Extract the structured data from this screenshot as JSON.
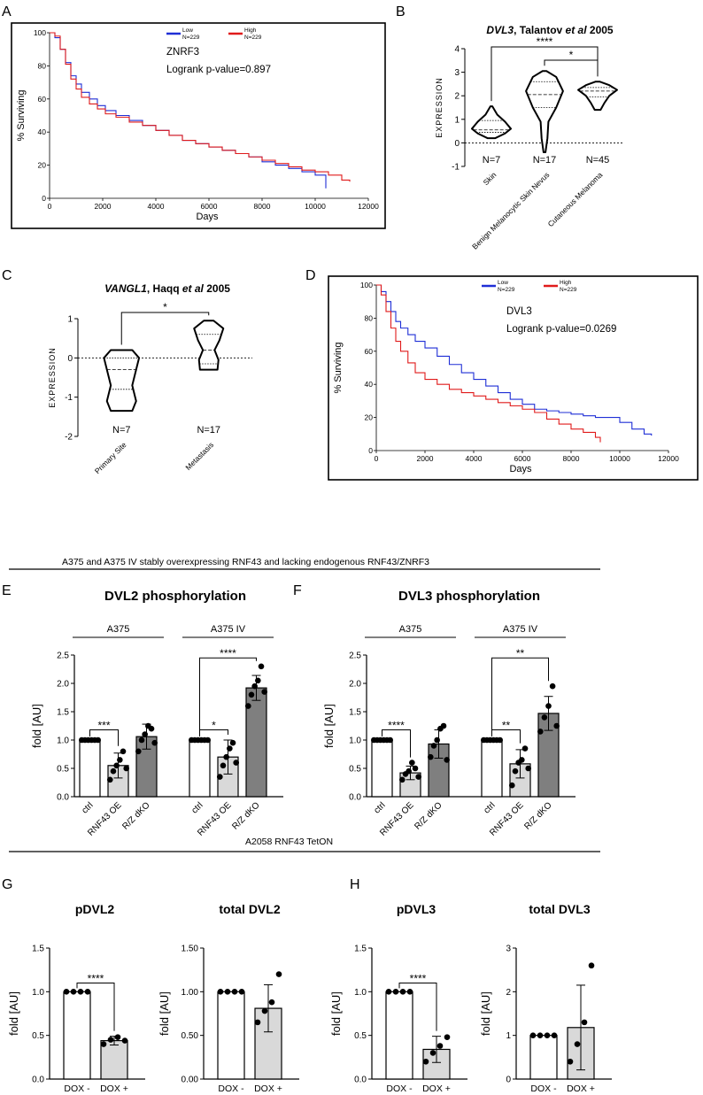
{
  "figure": {
    "panel_letters": [
      "A",
      "B",
      "C",
      "D",
      "E",
      "F",
      "G",
      "H"
    ],
    "section_e_title": "A375 and A375 IV stably overexpressing RNF43 and lacking endogenous RNF43/ZNRF3",
    "section_g_title": "A2058 RNF43    TetON"
  },
  "colors": {
    "low": "#1f2fd6",
    "high": "#e01b1b",
    "white_bar": "#ffffff",
    "light_bar": "#d9d9d9",
    "dark_bar": "#7f7f7f"
  },
  "chart_data": [
    {
      "id": "A",
      "type": "line",
      "gene": "ZNRF3",
      "pvalue_text": "Logrank  p-value=0.897",
      "xlabel": "Days",
      "ylabel": "% Surviving",
      "xlim": [
        0,
        12000
      ],
      "ylim": [
        0,
        100
      ],
      "xticks": [
        0,
        2000,
        4000,
        6000,
        8000,
        10000,
        12000
      ],
      "yticks": [
        0,
        20,
        40,
        60,
        80,
        100
      ],
      "legend": [
        {
          "name": "Low",
          "n": "N=229",
          "color": "#1f2fd6"
        },
        {
          "name": "High",
          "n": "N=229",
          "color": "#e01b1b"
        }
      ],
      "series": [
        {
          "name": "Low",
          "color": "#1f2fd6",
          "x": [
            0,
            200,
            400,
            600,
            800,
            1000,
            1200,
            1500,
            1800,
            2100,
            2500,
            3000,
            3500,
            4000,
            4500,
            5000,
            5500,
            6000,
            6500,
            7000,
            7500,
            8000,
            8500,
            9000,
            9500,
            10000,
            10400
          ],
          "y": [
            100,
            97,
            90,
            82,
            74,
            69,
            64,
            60,
            56,
            53,
            50,
            47,
            44,
            41,
            38,
            35,
            33,
            31,
            29,
            27,
            25,
            22,
            20,
            18,
            16,
            14,
            6
          ]
        },
        {
          "name": "High",
          "color": "#e01b1b",
          "x": [
            0,
            200,
            400,
            600,
            800,
            1000,
            1200,
            1500,
            1800,
            2100,
            2500,
            3000,
            3500,
            4000,
            4500,
            5000,
            5500,
            6000,
            6500,
            7000,
            7500,
            8000,
            8500,
            9000,
            9500,
            10000,
            10500,
            11000,
            11300
          ],
          "y": [
            100,
            98,
            90,
            81,
            72,
            66,
            61,
            57,
            54,
            51,
            49,
            46,
            44,
            41,
            38,
            35,
            33,
            31,
            29,
            27,
            25,
            23,
            21,
            19,
            17,
            16,
            14,
            11,
            10
          ]
        }
      ]
    },
    {
      "id": "B",
      "type": "violin",
      "title_italic": "DVL3",
      "title_rest": ", Talantov ",
      "title_etal": "et al",
      "title_year": " 2005",
      "ylabel": "EXPRESSION",
      "ylim": [
        -1,
        4
      ],
      "yticks": [
        -1,
        0,
        1,
        2,
        3,
        4
      ],
      "categories": [
        "Skin",
        "Benign Melanocytic Skin Nevus",
        "Cutaneous Melanoma"
      ],
      "counts": [
        "N=7",
        "N=17",
        "N=45"
      ],
      "groups": [
        {
          "min": 0.2,
          "max": 1.55,
          "q1": 0.45,
          "median": 0.55,
          "q3": 0.95,
          "widths": [
            [
              0.2,
              0.2
            ],
            [
              0.4,
              0.7
            ],
            [
              0.6,
              1.0
            ],
            [
              0.9,
              0.7
            ],
            [
              1.2,
              0.3
            ],
            [
              1.55,
              0.05
            ]
          ]
        },
        {
          "min": -0.4,
          "max": 3.05,
          "q1": 1.5,
          "median": 2.05,
          "q3": 2.6,
          "widths": [
            [
              -0.4,
              0.05
            ],
            [
              0.2,
              0.15
            ],
            [
              0.9,
              0.2
            ],
            [
              1.5,
              0.6
            ],
            [
              2.2,
              0.95
            ],
            [
              2.8,
              0.6
            ],
            [
              3.05,
              0.1
            ]
          ]
        },
        {
          "min": 1.4,
          "max": 2.6,
          "q1": 1.95,
          "median": 2.2,
          "q3": 2.35,
          "widths": [
            [
              1.4,
              0.15
            ],
            [
              1.7,
              0.35
            ],
            [
              2.0,
              0.6
            ],
            [
              2.25,
              1.0
            ],
            [
              2.45,
              0.6
            ],
            [
              2.6,
              0.1
            ]
          ]
        }
      ],
      "brackets": [
        {
          "from": 0,
          "to": 2,
          "label": "****"
        },
        {
          "from": 1,
          "to": 2,
          "label": "*"
        }
      ]
    },
    {
      "id": "C",
      "type": "violin",
      "title_italic": "VANGL1",
      "title_rest": ", Haqq ",
      "title_etal": "et al",
      "title_year": " 2005",
      "ylabel": "EXPRESSION",
      "ylim": [
        -2,
        1
      ],
      "yticks": [
        -2,
        -1,
        0,
        1
      ],
      "categories": [
        "Primary Site",
        "Metastasis"
      ],
      "counts": [
        "N=7",
        "N=17"
      ],
      "groups": [
        {
          "min": -1.35,
          "max": 0.2,
          "q1": -0.8,
          "median": -0.3,
          "q3": 0.0,
          "widths": [
            [
              -1.35,
              0.55
            ],
            [
              -1.1,
              0.75
            ],
            [
              -0.7,
              0.55
            ],
            [
              -0.3,
              0.75
            ],
            [
              0.0,
              0.9
            ],
            [
              0.2,
              0.55
            ]
          ]
        },
        {
          "min": -0.3,
          "max": 0.95,
          "q1": -0.15,
          "median": 0.2,
          "q3": 0.6,
          "widths": [
            [
              -0.3,
              0.45
            ],
            [
              -0.05,
              0.5
            ],
            [
              0.2,
              0.3
            ],
            [
              0.45,
              0.55
            ],
            [
              0.75,
              0.75
            ],
            [
              0.95,
              0.25
            ]
          ]
        }
      ],
      "brackets": [
        {
          "from": 0,
          "to": 1,
          "label": "*"
        }
      ]
    },
    {
      "id": "D",
      "type": "line",
      "gene": "DVL3",
      "pvalue_text": "Logrank  p-value=0.0269",
      "xlabel": "Days",
      "ylabel": "% Surviving",
      "xlim": [
        0,
        12000
      ],
      "ylim": [
        0,
        100
      ],
      "xticks": [
        0,
        2000,
        4000,
        6000,
        8000,
        10000,
        12000
      ],
      "yticks": [
        0,
        20,
        40,
        60,
        80,
        100
      ],
      "legend": [
        {
          "name": "Low",
          "n": "N=229",
          "color": "#1f2fd6"
        },
        {
          "name": "High",
          "n": "N=229",
          "color": "#e01b1b"
        }
      ],
      "series": [
        {
          "name": "Low",
          "color": "#1f2fd6",
          "x": [
            0,
            200,
            400,
            600,
            800,
            1000,
            1300,
            1600,
            2000,
            2500,
            3000,
            3500,
            4000,
            4500,
            5000,
            5500,
            6000,
            6500,
            7000,
            7500,
            8000,
            8500,
            9000,
            9500,
            10000,
            10500,
            11000,
            11300
          ],
          "y": [
            100,
            96,
            90,
            84,
            78,
            74,
            70,
            66,
            62,
            57,
            52,
            47,
            43,
            39,
            35,
            31,
            28,
            25,
            24,
            23,
            22,
            21,
            20,
            20,
            17,
            13,
            10,
            9
          ]
        },
        {
          "name": "High",
          "color": "#e01b1b",
          "x": [
            0,
            200,
            400,
            600,
            800,
            1000,
            1300,
            1600,
            2000,
            2500,
            3000,
            3500,
            4000,
            4500,
            5000,
            5500,
            6000,
            6500,
            7000,
            7500,
            8000,
            8500,
            9000,
            9200
          ],
          "y": [
            100,
            94,
            84,
            74,
            66,
            60,
            53,
            47,
            43,
            40,
            37,
            35,
            33,
            31,
            29,
            27,
            25,
            23,
            19,
            16,
            13,
            11,
            8,
            5
          ]
        }
      ]
    },
    {
      "id": "E",
      "type": "bar",
      "title": "DVL2 phosphorylation",
      "ylabel": "fold [AU]",
      "ylim": [
        0,
        2.5
      ],
      "yticks": [
        "0.0",
        "0.5",
        "1.0",
        "1.5",
        "2.0",
        "2.5"
      ],
      "groups": [
        {
          "label": "A375",
          "span": [
            0,
            2
          ]
        },
        {
          "label": "A375 IV",
          "span": [
            3,
            5
          ]
        }
      ],
      "categories": [
        "ctrl",
        "RNF43 OE",
        "R/Z dKO",
        "ctrl",
        "RNF43 OE",
        "R/Z dKO"
      ],
      "values": [
        1.0,
        0.55,
        1.06,
        1.0,
        0.7,
        1.92
      ],
      "errors": [
        0.0,
        0.22,
        0.22,
        0.0,
        0.3,
        0.22
      ],
      "fills": [
        "white",
        "light",
        "dark",
        "white",
        "light",
        "dark"
      ],
      "points": [
        [
          1,
          1,
          1,
          1,
          1,
          1
        ],
        [
          0.3,
          0.45,
          0.55,
          0.65,
          0.8,
          0.5
        ],
        [
          0.8,
          1.0,
          1.1,
          1.25,
          1.2,
          0.95
        ],
        [
          1,
          1,
          1,
          1,
          1,
          1
        ],
        [
          0.35,
          0.55,
          0.7,
          0.85,
          0.95,
          0.6
        ],
        [
          1.6,
          1.8,
          1.95,
          2.05,
          2.3,
          1.85
        ]
      ],
      "brackets": [
        {
          "from": 0,
          "to": 1,
          "label": "***",
          "y": 1.18
        },
        {
          "from": 3,
          "to": 4,
          "label": "*",
          "y": 1.18
        },
        {
          "from": 3,
          "to": 5,
          "label": "****",
          "y": 2.45
        }
      ]
    },
    {
      "id": "F",
      "type": "bar",
      "title": "DVL3 phosphorylation",
      "ylabel": "fold [AU]",
      "ylim": [
        0,
        2.5
      ],
      "yticks": [
        "0.0",
        "0.5",
        "1.0",
        "1.5",
        "2.0",
        "2.5"
      ],
      "groups": [
        {
          "label": "A375",
          "span": [
            0,
            2
          ]
        },
        {
          "label": "A375 IV",
          "span": [
            3,
            5
          ]
        }
      ],
      "categories": [
        "ctrl",
        "RNF43 OE",
        "R/Z dKO",
        "ctrl",
        "RNF43 OE",
        "R/Z dKO"
      ],
      "values": [
        1.0,
        0.42,
        0.93,
        1.0,
        0.58,
        1.47
      ],
      "errors": [
        0.0,
        0.12,
        0.25,
        0.0,
        0.25,
        0.3
      ],
      "fills": [
        "white",
        "light",
        "dark",
        "white",
        "light",
        "dark"
      ],
      "points": [
        [
          1,
          1,
          1,
          1,
          1,
          1
        ],
        [
          0.3,
          0.4,
          0.45,
          0.6,
          0.5,
          0.35
        ],
        [
          0.7,
          0.9,
          1.0,
          1.2,
          1.25,
          0.65
        ],
        [
          1,
          1,
          1,
          1,
          1,
          1
        ],
        [
          0.2,
          0.45,
          0.6,
          0.65,
          0.85,
          0.5
        ],
        [
          1.15,
          1.4,
          1.6,
          1.95,
          1.25
        ]
      ],
      "brackets": [
        {
          "from": 0,
          "to": 1,
          "label": "****",
          "y": 1.18
        },
        {
          "from": 3,
          "to": 4,
          "label": "**",
          "y": 1.18
        },
        {
          "from": 3,
          "to": 5,
          "label": "**",
          "y": 2.45
        }
      ]
    },
    {
      "id": "G1",
      "type": "bar",
      "title": "pDVL2",
      "ylabel": "fold [AU]",
      "ylim": [
        0,
        1.5
      ],
      "yticks": [
        "0.0",
        "0.5",
        "1.0",
        "1.5"
      ],
      "categories": [
        "DOX -",
        "DOX +"
      ],
      "values": [
        1.0,
        0.44
      ],
      "errors": [
        0.0,
        0.05
      ],
      "fills": [
        "white",
        "light"
      ],
      "points": [
        [
          1,
          1,
          1,
          1
        ],
        [
          0.4,
          0.45,
          0.48,
          0.44
        ]
      ],
      "brackets": [
        {
          "from": 0,
          "to": 1,
          "label": "****",
          "y": 1.1
        }
      ]
    },
    {
      "id": "G2",
      "type": "bar",
      "title": "total DVL2",
      "ylabel": "fold [AU]",
      "ylim": [
        0,
        1.5
      ],
      "yticks": [
        "0.00",
        "0.50",
        "1.00",
        "1.50"
      ],
      "categories": [
        "DOX -",
        "DOX +"
      ],
      "values": [
        1.0,
        0.81
      ],
      "errors": [
        0.0,
        0.27
      ],
      "fills": [
        "white",
        "light"
      ],
      "points": [
        [
          1,
          1,
          1,
          1
        ],
        [
          0.65,
          0.78,
          0.88,
          1.2
        ]
      ],
      "brackets": []
    },
    {
      "id": "H1",
      "type": "bar",
      "title": "pDVL3",
      "ylabel": "fold [AU]",
      "ylim": [
        0,
        1.5
      ],
      "yticks": [
        "0.0",
        "0.5",
        "1.0",
        "1.5"
      ],
      "categories": [
        "DOX -",
        "DOX +"
      ],
      "values": [
        1.0,
        0.34
      ],
      "errors": [
        0.0,
        0.15
      ],
      "fills": [
        "white",
        "light"
      ],
      "points": [
        [
          1,
          1,
          1,
          1
        ],
        [
          0.2,
          0.3,
          0.38,
          0.48
        ]
      ],
      "brackets": [
        {
          "from": 0,
          "to": 1,
          "label": "****",
          "y": 1.1
        }
      ]
    },
    {
      "id": "H2",
      "type": "bar",
      "title": "total DVL3",
      "ylabel": "fold [AU]",
      "ylim": [
        0,
        3
      ],
      "yticks": [
        "0",
        "1",
        "2",
        "3"
      ],
      "categories": [
        "DOX -",
        "DOX +"
      ],
      "values": [
        1.0,
        1.18
      ],
      "errors": [
        0.0,
        0.97
      ],
      "fills": [
        "white",
        "light"
      ],
      "points": [
        [
          1,
          1,
          1,
          1
        ],
        [
          0.4,
          0.8,
          1.3,
          2.6
        ]
      ],
      "brackets": []
    }
  ]
}
